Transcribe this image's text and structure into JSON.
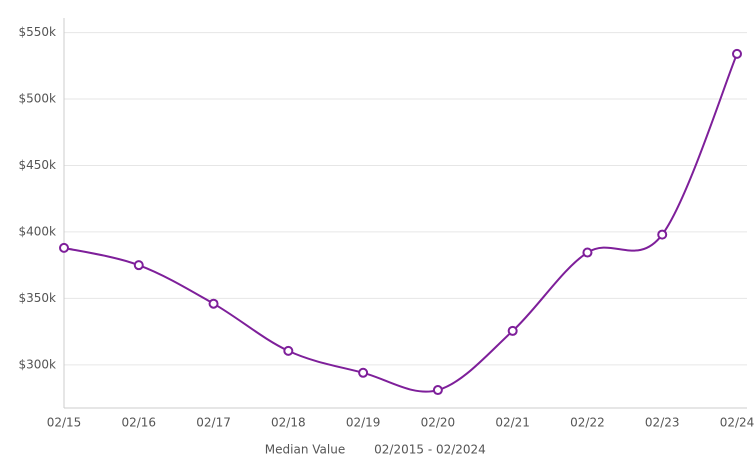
{
  "chart_data": {
    "type": "line",
    "categories": [
      "02/15",
      "02/16",
      "02/17",
      "02/18",
      "02/19",
      "02/20",
      "02/21",
      "02/22",
      "02/23",
      "02/24"
    ],
    "series": [
      {
        "name": "Median Value",
        "color": "#7e1f9a",
        "values": [
          388000,
          375000,
          346000,
          310500,
          294000,
          281000,
          325500,
          384500,
          398000,
          534000
        ]
      }
    ],
    "subtitle": "02/2015 - 02/2024",
    "ylim": [
      267500,
      561000
    ],
    "yticks": [
      {
        "value": 300000,
        "label": "$300k"
      },
      {
        "value": 350000,
        "label": "$350k"
      },
      {
        "value": 400000,
        "label": "$400k"
      },
      {
        "value": 450000,
        "label": "$450k"
      },
      {
        "value": 500000,
        "label": "$500k"
      },
      {
        "value": 550000,
        "label": "$550k"
      }
    ],
    "grid": true
  }
}
